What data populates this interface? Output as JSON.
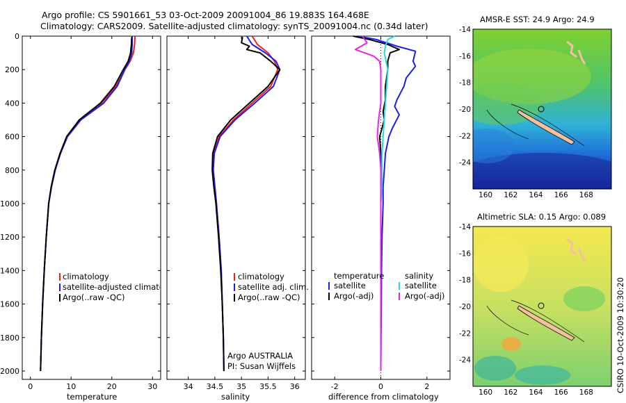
{
  "header": {
    "line1": "Argo profile: CS 5901661_53 03-Oct-2009 20091004_86 19.883S 164.468E",
    "line2": "Climatology: CARS2009. Satellite-adjusted climatology: synTS_20091004.nc (0.34d later)"
  },
  "colors": {
    "climatology": "#ee1c1c",
    "satellite": "#1c1cee",
    "argo": "#000000",
    "sat_salinity": "#22dddd",
    "argo_salinity": "#ee22ee"
  },
  "chart_data": [
    {
      "type": "line",
      "name": "temperature",
      "xlabel": "temperature",
      "ylabel": "",
      "xlim": [
        -2,
        32
      ],
      "ylim": [
        2050,
        0
      ],
      "xticks": [
        0,
        10,
        20,
        30
      ],
      "yticks": [
        0,
        200,
        400,
        600,
        800,
        1000,
        1200,
        1400,
        1600,
        1800,
        2000
      ],
      "legend": [
        "climatology",
        "satellite-adjusted climatology",
        "Argo(..raw -QC)"
      ],
      "series": [
        {
          "name": "climatology",
          "color": "#ee1c1c",
          "points": [
            [
              25.7,
              0
            ],
            [
              25.6,
              50
            ],
            [
              25.3,
              100
            ],
            [
              24.5,
              150
            ],
            [
              23.2,
              200
            ],
            [
              21,
              300
            ],
            [
              17.5,
              400
            ],
            [
              12.2,
              500
            ],
            [
              9,
              600
            ],
            [
              7.3,
              700
            ],
            [
              6,
              800
            ],
            [
              5.1,
              900
            ],
            [
              4.5,
              1000
            ],
            [
              3.9,
              1200
            ],
            [
              3.4,
              1400
            ],
            [
              3,
              1600
            ],
            [
              2.7,
              1800
            ],
            [
              2.5,
              2000
            ]
          ]
        },
        {
          "name": "satellite",
          "color": "#1c1cee",
          "points": [
            [
              25,
              0
            ],
            [
              25,
              50
            ],
            [
              24.9,
              100
            ],
            [
              24.3,
              150
            ],
            [
              23.2,
              200
            ],
            [
              21.3,
              300
            ],
            [
              18,
              400
            ],
            [
              12.4,
              500
            ],
            [
              9.1,
              600
            ],
            [
              7.4,
              700
            ],
            [
              6.1,
              800
            ],
            [
              5.2,
              900
            ],
            [
              4.5,
              1000
            ],
            [
              3.9,
              1200
            ],
            [
              3.4,
              1400
            ],
            [
              3,
              1600
            ],
            [
              2.7,
              1800
            ],
            [
              2.5,
              2000
            ]
          ]
        },
        {
          "name": "argo",
          "color": "#000000",
          "points": [
            [
              24.9,
              5
            ],
            [
              24.8,
              50
            ],
            [
              24.6,
              100
            ],
            [
              24,
              150
            ],
            [
              22.8,
              200
            ],
            [
              20.6,
              300
            ],
            [
              17.2,
              400
            ],
            [
              12,
              500
            ],
            [
              8.9,
              600
            ],
            [
              7.3,
              700
            ],
            [
              6,
              800
            ],
            [
              5.1,
              900
            ],
            [
              4.5,
              1000
            ],
            [
              3.9,
              1200
            ],
            [
              3.4,
              1400
            ],
            [
              3,
              1600
            ],
            [
              2.7,
              1800
            ],
            [
              2.5,
              2000
            ]
          ]
        }
      ]
    },
    {
      "type": "line",
      "name": "salinity",
      "xlabel": "salinity",
      "ylabel": "",
      "xlim": [
        33.6,
        36.2
      ],
      "ylim": [
        2050,
        0
      ],
      "xticks": [
        34,
        34.5,
        35,
        35.5,
        36
      ],
      "legend": [
        "climatology",
        "satellite adj. clim.",
        "Argo(..raw -QC)"
      ],
      "series": [
        {
          "name": "climatology",
          "color": "#ee1c1c",
          "points": [
            [
              35.2,
              0
            ],
            [
              35.3,
              50
            ],
            [
              35.5,
              100
            ],
            [
              35.62,
              150
            ],
            [
              35.68,
              200
            ],
            [
              35.55,
              300
            ],
            [
              35.2,
              400
            ],
            [
              34.85,
              500
            ],
            [
              34.58,
              600
            ],
            [
              34.48,
              700
            ],
            [
              34.47,
              800
            ],
            [
              34.5,
              900
            ],
            [
              34.53,
              1000
            ],
            [
              34.58,
              1200
            ],
            [
              34.62,
              1400
            ],
            [
              34.64,
              1600
            ],
            [
              34.66,
              1800
            ],
            [
              34.67,
              2000
            ]
          ]
        },
        {
          "name": "satellite",
          "color": "#1c1cee",
          "points": [
            [
              35.1,
              0
            ],
            [
              35.2,
              50
            ],
            [
              35.45,
              100
            ],
            [
              35.65,
              150
            ],
            [
              35.72,
              200
            ],
            [
              35.6,
              300
            ],
            [
              35.25,
              400
            ],
            [
              34.88,
              500
            ],
            [
              34.6,
              600
            ],
            [
              34.49,
              700
            ],
            [
              34.47,
              800
            ],
            [
              34.5,
              900
            ],
            [
              34.53,
              1000
            ],
            [
              34.58,
              1200
            ],
            [
              34.62,
              1400
            ],
            [
              34.64,
              1600
            ],
            [
              34.66,
              1800
            ],
            [
              34.67,
              2000
            ]
          ]
        },
        {
          "name": "argo",
          "color": "#000000",
          "points": [
            [
              35.02,
              5
            ],
            [
              35.0,
              40
            ],
            [
              35.15,
              60
            ],
            [
              35.1,
              80
            ],
            [
              35.35,
              100
            ],
            [
              35.55,
              150
            ],
            [
              35.72,
              200
            ],
            [
              35.5,
              300
            ],
            [
              35.15,
              400
            ],
            [
              34.8,
              500
            ],
            [
              34.55,
              600
            ],
            [
              34.46,
              700
            ],
            [
              34.45,
              800
            ],
            [
              34.48,
              900
            ],
            [
              34.52,
              1000
            ],
            [
              34.57,
              1200
            ],
            [
              34.61,
              1400
            ],
            [
              34.64,
              1600
            ],
            [
              34.66,
              1800
            ],
            [
              34.67,
              2000
            ]
          ]
        }
      ],
      "annotation": [
        "Argo AUSTRALIA",
        "PI: Susan Wijffels"
      ]
    },
    {
      "type": "line",
      "name": "difference",
      "xlabel": "difference from climatology",
      "ylabel": "",
      "xlim": [
        -3,
        3
      ],
      "ylim": [
        2050,
        0
      ],
      "xticks": [
        -2,
        0,
        2
      ],
      "legend_left_title": "temperature",
      "legend_right_title": "salinity",
      "legend_left": [
        "satellite",
        "Argo(-adj)"
      ],
      "legend_right": [
        "satellite",
        "Argo(-adj)"
      ],
      "series": [
        {
          "name": "temp satellite",
          "color": "#1c1cee",
          "points": [
            [
              -1,
              0
            ],
            [
              -0.2,
              20
            ],
            [
              0.7,
              60
            ],
            [
              1.5,
              90
            ],
            [
              1.4,
              150
            ],
            [
              1.5,
              180
            ],
            [
              1.1,
              250
            ],
            [
              1.0,
              300
            ],
            [
              0.7,
              380
            ],
            [
              0.6,
              420
            ],
            [
              0.8,
              470
            ],
            [
              0.5,
              550
            ],
            [
              0.35,
              600
            ],
            [
              0.2,
              700
            ],
            [
              0.15,
              800
            ],
            [
              0.1,
              900
            ],
            [
              0.1,
              1000
            ],
            [
              0.05,
              1200
            ],
            [
              0.03,
              1400
            ],
            [
              0.02,
              1600
            ],
            [
              0.01,
              1800
            ],
            [
              0,
              2000
            ]
          ]
        },
        {
          "name": "temp argo",
          "color": "#000000",
          "points": [
            [
              -1.2,
              0
            ],
            [
              -0.5,
              20
            ],
            [
              0.3,
              50
            ],
            [
              0.8,
              80
            ],
            [
              0.4,
              100
            ],
            [
              0.3,
              150
            ],
            [
              0.3,
              200
            ],
            [
              0.2,
              300
            ],
            [
              0.2,
              380
            ],
            [
              0.1,
              450
            ],
            [
              0.15,
              500
            ],
            [
              0.05,
              550
            ],
            [
              -0.05,
              600
            ],
            [
              0,
              700
            ],
            [
              0,
              800
            ],
            [
              0,
              1000
            ],
            [
              0,
              1500
            ],
            [
              0,
              2000
            ]
          ]
        },
        {
          "name": "sal satellite",
          "color": "#22dddd",
          "points": [
            [
              0.6,
              0
            ],
            [
              0.3,
              20
            ],
            [
              0.2,
              60
            ],
            [
              0.15,
              100
            ],
            [
              0.3,
              200
            ],
            [
              0.25,
              300
            ],
            [
              0.2,
              400
            ],
            [
              0.15,
              500
            ],
            [
              0.1,
              600
            ],
            [
              0.05,
              700
            ],
            [
              0.05,
              800
            ],
            [
              0.05,
              900
            ],
            [
              0,
              1000
            ],
            [
              0,
              1500
            ],
            [
              0,
              2000
            ]
          ]
        },
        {
          "name": "sal argo",
          "color": "#ee22ee",
          "points": [
            [
              -0.8,
              0
            ],
            [
              -0.6,
              40
            ],
            [
              -1.1,
              80
            ],
            [
              -0.3,
              120
            ],
            [
              -0.05,
              150
            ],
            [
              0,
              200
            ],
            [
              0,
              300
            ],
            [
              0,
              400
            ],
            [
              -0.1,
              500
            ],
            [
              -0.15,
              600
            ],
            [
              -0.05,
              700
            ],
            [
              0,
              800
            ],
            [
              0,
              1000
            ],
            [
              0,
              2000
            ]
          ]
        }
      ]
    },
    {
      "type": "heatmap",
      "name": "sst_map",
      "title": "AMSR-E SST: 24.9 Argo: 24.9",
      "xticks": [
        160,
        162,
        164,
        166,
        168
      ],
      "yticks": [
        -14,
        -16,
        -18,
        -20,
        -22,
        -24
      ],
      "xlim": [
        159,
        170
      ],
      "ylim": [
        -26,
        -14
      ],
      "marker": [
        164.468,
        -19.883
      ]
    },
    {
      "type": "heatmap",
      "name": "sla_map",
      "title": "Altimetric SLA: 0.15 Argo: 0.089",
      "xticks": [
        160,
        162,
        164,
        166,
        168
      ],
      "yticks": [
        -14,
        -16,
        -18,
        -20,
        -22,
        -24
      ],
      "xlim": [
        159,
        170
      ],
      "ylim": [
        -26,
        -14
      ],
      "marker": [
        164.468,
        -19.883
      ]
    }
  ],
  "side_text": "CSIRO 10-Oct-2009 10:30:20"
}
